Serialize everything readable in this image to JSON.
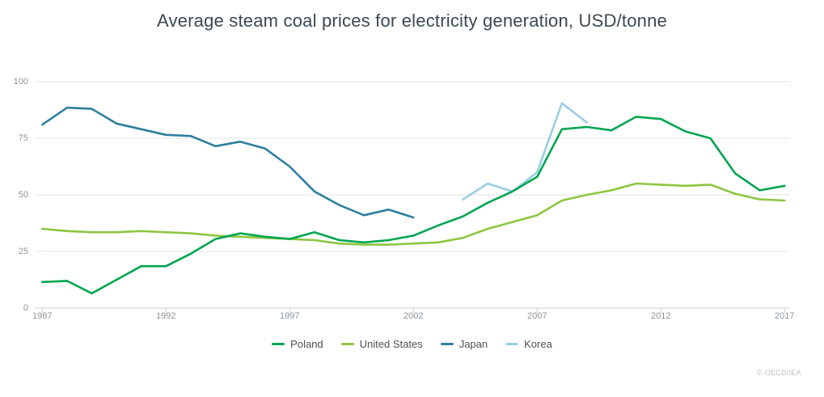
{
  "title": "Average steam coal prices for electricity generation, USD/tonne",
  "footer": "© OECD/IEA",
  "chart_data": {
    "type": "line",
    "title": "Average steam coal prices for electricity generation, USD/tonne",
    "xlabel": "",
    "ylabel": "USD/tonne",
    "xlim": [
      1987,
      2017
    ],
    "ylim": [
      0,
      100
    ],
    "x_ticks": [
      1987,
      1992,
      1997,
      2002,
      2007,
      2012,
      2017
    ],
    "y_ticks": [
      0,
      25,
      50,
      75,
      100
    ],
    "x_interval_years": 1,
    "grid": "horizontal",
    "legend_position": "bottom",
    "colors": {
      "grid": "#e2e4e6",
      "axis": "#ccd1d5",
      "tick": "#c9ced2",
      "axis_text": "#8f959a"
    },
    "series": [
      {
        "name": "Poland",
        "color": "#00a551",
        "start_year": 1987,
        "end_year": 2017,
        "values": [
          11.5,
          12,
          6.5,
          12.5,
          18.5,
          18.5,
          24,
          30.5,
          33,
          31.5,
          30.5,
          33.5,
          30,
          29,
          30,
          32,
          36.5,
          40.5,
          46.5,
          51.5,
          58,
          79,
          80,
          78.5,
          84.5,
          83.5,
          78,
          75,
          59.5,
          52,
          54
        ]
      },
      {
        "name": "United States",
        "color": "#8dc63f",
        "start_year": 1987,
        "end_year": 2017,
        "values": [
          35,
          34,
          33.5,
          33.5,
          34,
          33.5,
          33,
          32,
          31.5,
          31,
          30.5,
          30,
          28.5,
          28,
          28,
          28.5,
          29,
          31,
          35,
          38,
          41,
          47.5,
          50,
          52,
          55,
          54.5,
          54,
          54.5,
          50.5,
          48,
          47.5
        ]
      },
      {
        "name": "Japan",
        "color": "#2e7f9f",
        "start_year": 1987,
        "end_year": 2002,
        "values": [
          81,
          88.5,
          88,
          81.5,
          79,
          76.5,
          76,
          71.5,
          73.5,
          70.5,
          62.5,
          51.5,
          45.5,
          41,
          43.5,
          40
        ]
      },
      {
        "name": "Korea",
        "color": "#9bcde4",
        "start_year": 2004,
        "end_year": 2009,
        "values": [
          48,
          55,
          51.5,
          60,
          90.5,
          82
        ]
      }
    ]
  }
}
